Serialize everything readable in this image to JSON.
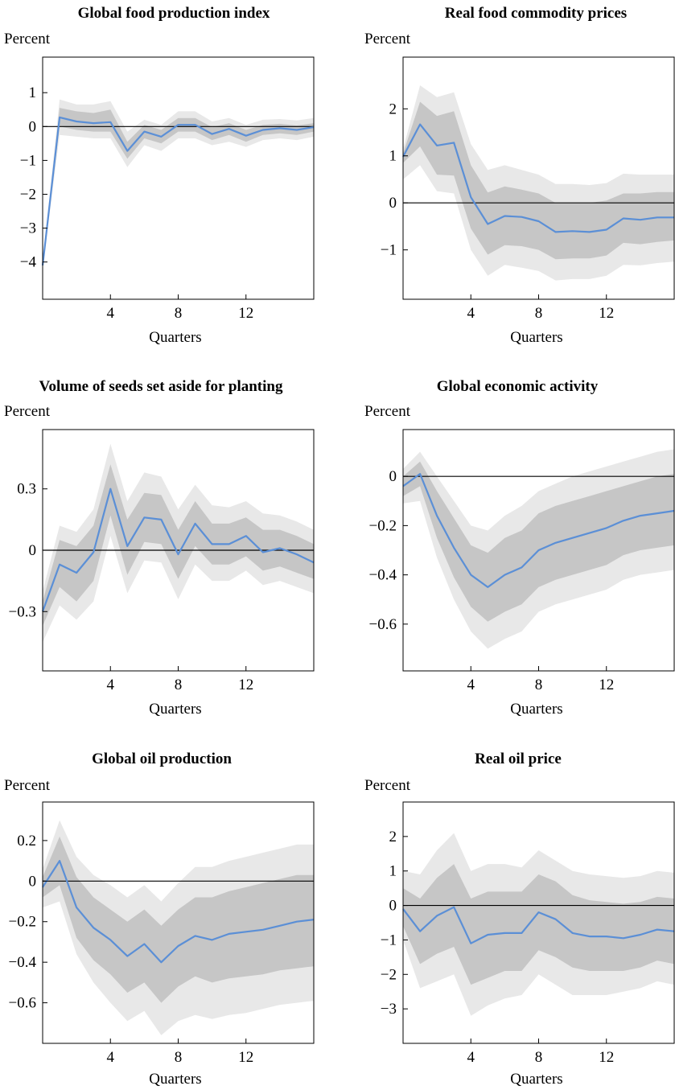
{
  "figure": {
    "panels": [
      {
        "title": "Global food production index",
        "unit_label": "Percent",
        "xlabel": "Quarters"
      },
      {
        "title": "Real food commodity prices",
        "unit_label": "Percent",
        "xlabel": "Quarters"
      },
      {
        "title": "Volume of seeds set aside for planting",
        "unit_label": "Percent",
        "xlabel": "Quarters"
      },
      {
        "title": "Global economic activity",
        "unit_label": "Percent",
        "xlabel": "Quarters"
      },
      {
        "title": "Global oil production",
        "unit_label": "Percent",
        "xlabel": "Quarters"
      },
      {
        "title": "Real oil price",
        "unit_label": "Percent",
        "xlabel": "Quarters"
      }
    ]
  },
  "colors": {
    "line": "#5b8fd6",
    "band_inner": "#c6c6c6",
    "band_outer": "#e8e8e8",
    "zero_line": "#000000"
  },
  "chart_data": [
    {
      "type": "line",
      "title": "Global food production index",
      "ylabel": "Percent",
      "xlabel": "Quarters",
      "x": [
        0,
        1,
        2,
        3,
        4,
        5,
        6,
        7,
        8,
        9,
        10,
        11,
        12,
        13,
        14,
        15,
        16
      ],
      "xlim": [
        0,
        16
      ],
      "ylim": [
        -5.1,
        2.05
      ],
      "xticks": [
        4,
        8,
        12
      ],
      "yticks": [
        1,
        0,
        -1,
        -2,
        -3,
        -4
      ],
      "ytick_labels": [
        "1",
        "0",
        "−1",
        "−2",
        "−3",
        "−4"
      ],
      "series": [
        {
          "values": [
            -4.1,
            0.27,
            0.15,
            0.1,
            0.13,
            -0.72,
            -0.15,
            -0.3,
            0.05,
            0.05,
            -0.22,
            -0.07,
            -0.27,
            -0.1,
            -0.05,
            -0.1,
            -0.02
          ]
        }
      ],
      "band_inner": {
        "upper": [
          -4.05,
          0.55,
          0.45,
          0.4,
          0.5,
          -0.45,
          0.05,
          -0.1,
          0.25,
          0.25,
          -0.02,
          0.1,
          -0.1,
          0.05,
          0.08,
          0.03,
          0.1
        ],
        "lower": [
          -4.15,
          0.0,
          -0.1,
          -0.15,
          -0.15,
          -0.95,
          -0.35,
          -0.5,
          -0.15,
          -0.15,
          -0.4,
          -0.25,
          -0.45,
          -0.25,
          -0.2,
          -0.25,
          -0.15
        ]
      },
      "band_outer": {
        "upper": [
          -4.0,
          0.8,
          0.65,
          0.65,
          0.75,
          -0.15,
          0.2,
          0.05,
          0.45,
          0.45,
          0.15,
          0.25,
          0.05,
          0.2,
          0.22,
          0.18,
          0.25
        ],
        "lower": [
          -4.2,
          -0.25,
          -0.3,
          -0.35,
          -0.35,
          -1.2,
          -0.55,
          -0.72,
          -0.35,
          -0.35,
          -0.55,
          -0.45,
          -0.6,
          -0.4,
          -0.35,
          -0.4,
          -0.3
        ]
      }
    },
    {
      "type": "line",
      "title": "Real food commodity prices",
      "ylabel": "Percent",
      "xlabel": "Quarters",
      "x": [
        0,
        1,
        2,
        3,
        4,
        5,
        6,
        7,
        8,
        9,
        10,
        11,
        12,
        13,
        14,
        15,
        16
      ],
      "xlim": [
        0,
        16
      ],
      "ylim": [
        -2.05,
        3.1
      ],
      "xticks": [
        4,
        8,
        12
      ],
      "yticks": [
        2,
        1,
        0,
        -1
      ],
      "ytick_labels": [
        "2",
        "1",
        "0",
        "−1"
      ],
      "series": [
        {
          "values": [
            0.98,
            1.67,
            1.22,
            1.28,
            0.12,
            -0.45,
            -0.28,
            -0.3,
            -0.39,
            -0.62,
            -0.6,
            -0.62,
            -0.57,
            -0.33,
            -0.36,
            -0.31,
            -0.31
          ]
        }
      ],
      "band_inner": {
        "upper": [
          1.05,
          2.15,
          1.85,
          1.95,
          0.8,
          0.22,
          0.35,
          0.28,
          0.2,
          0.0,
          0.0,
          0.0,
          0.05,
          0.2,
          0.2,
          0.23,
          0.23
        ],
        "lower": [
          0.85,
          1.2,
          0.6,
          0.58,
          -0.55,
          -1.1,
          -0.9,
          -0.92,
          -1.0,
          -1.2,
          -1.18,
          -1.18,
          -1.12,
          -0.85,
          -0.88,
          -0.83,
          -0.8
        ]
      },
      "band_outer": {
        "upper": [
          1.15,
          2.5,
          2.25,
          2.35,
          1.25,
          0.7,
          0.8,
          0.7,
          0.6,
          0.4,
          0.4,
          0.38,
          0.42,
          0.62,
          0.6,
          0.6,
          0.6
        ]
      },
      "band_outer_lower": [
        0.5,
        0.8,
        0.25,
        0.2,
        -1.0,
        -1.55,
        -1.32,
        -1.38,
        -1.45,
        -1.65,
        -1.62,
        -1.62,
        -1.55,
        -1.32,
        -1.33,
        -1.28,
        -1.25
      ]
    },
    {
      "type": "line",
      "title": "Volume of seeds set aside for planting",
      "ylabel": "Percent",
      "xlabel": "Quarters",
      "x": [
        0,
        1,
        2,
        3,
        4,
        5,
        6,
        7,
        8,
        9,
        10,
        11,
        12,
        13,
        14,
        15,
        16
      ],
      "xlim": [
        0,
        16
      ],
      "ylim": [
        -0.59,
        0.59
      ],
      "xticks": [
        4,
        8,
        12
      ],
      "yticks": [
        0.3,
        0,
        -0.3
      ],
      "ytick_labels": [
        "0.3",
        "0",
        "−0.3"
      ],
      "series": [
        {
          "values": [
            -0.3,
            -0.07,
            -0.11,
            -0.01,
            0.3,
            0.02,
            0.16,
            0.15,
            -0.02,
            0.13,
            0.03,
            0.03,
            0.07,
            -0.01,
            0.01,
            -0.02,
            -0.06
          ]
        }
      ],
      "band_inner": {
        "upper": [
          -0.25,
          0.05,
          0.02,
          0.12,
          0.42,
          0.15,
          0.28,
          0.27,
          0.1,
          0.24,
          0.13,
          0.13,
          0.16,
          0.1,
          0.1,
          0.07,
          0.03
        ],
        "lower": [
          -0.37,
          -0.18,
          -0.25,
          -0.15,
          0.17,
          -0.12,
          0.04,
          0.03,
          -0.14,
          0.02,
          -0.07,
          -0.07,
          -0.03,
          -0.1,
          -0.08,
          -0.11,
          -0.14
        ]
      },
      "band_outer": {
        "upper": [
          -0.2,
          0.12,
          0.09,
          0.2,
          0.52,
          0.24,
          0.38,
          0.36,
          0.2,
          0.32,
          0.22,
          0.21,
          0.24,
          0.18,
          0.17,
          0.14,
          0.1
        ],
        "lower": [
          -0.45,
          -0.27,
          -0.34,
          -0.25,
          0.07,
          -0.21,
          -0.05,
          -0.06,
          -0.24,
          -0.07,
          -0.15,
          -0.15,
          -0.1,
          -0.17,
          -0.15,
          -0.18,
          -0.21
        ]
      }
    },
    {
      "type": "line",
      "title": "Global economic activity",
      "ylabel": "Percent",
      "xlabel": "Quarters",
      "x": [
        0,
        1,
        2,
        3,
        4,
        5,
        6,
        7,
        8,
        9,
        10,
        11,
        12,
        13,
        14,
        15,
        16
      ],
      "xlim": [
        0,
        16
      ],
      "ylim": [
        -0.79,
        0.19
      ],
      "xticks": [
        4,
        8,
        12
      ],
      "yticks": [
        0,
        -0.2,
        -0.4,
        -0.6
      ],
      "ytick_labels": [
        "0",
        "−0.2",
        "−0.4",
        "−0.6"
      ],
      "series": [
        {
          "values": [
            -0.04,
            0.01,
            -0.16,
            -0.29,
            -0.4,
            -0.45,
            -0.4,
            -0.37,
            -0.3,
            -0.27,
            -0.25,
            -0.23,
            -0.21,
            -0.18,
            -0.16,
            -0.15,
            -0.14
          ]
        }
      ],
      "band_inner": {
        "upper": [
          0.0,
          0.06,
          -0.06,
          -0.17,
          -0.28,
          -0.31,
          -0.25,
          -0.22,
          -0.15,
          -0.12,
          -0.1,
          -0.08,
          -0.06,
          -0.04,
          -0.02,
          0.0,
          0.01
        ],
        "lower": [
          -0.08,
          -0.04,
          -0.25,
          -0.41,
          -0.53,
          -0.59,
          -0.55,
          -0.52,
          -0.45,
          -0.42,
          -0.4,
          -0.38,
          -0.36,
          -0.32,
          -0.3,
          -0.29,
          -0.28
        ]
      },
      "band_outer": {
        "upper": [
          0.03,
          0.1,
          0.0,
          -0.1,
          -0.2,
          -0.22,
          -0.16,
          -0.12,
          -0.06,
          -0.03,
          0.0,
          0.02,
          0.04,
          0.06,
          0.08,
          0.1,
          0.11
        ],
        "lower": [
          -0.11,
          -0.1,
          -0.33,
          -0.5,
          -0.63,
          -0.7,
          -0.66,
          -0.63,
          -0.55,
          -0.52,
          -0.5,
          -0.48,
          -0.46,
          -0.42,
          -0.4,
          -0.39,
          -0.38
        ]
      }
    },
    {
      "type": "line",
      "title": "Global oil production",
      "ylabel": "Percent",
      "xlabel": "Quarters",
      "x": [
        0,
        1,
        2,
        3,
        4,
        5,
        6,
        7,
        8,
        9,
        10,
        11,
        12,
        13,
        14,
        15,
        16
      ],
      "xlim": [
        0,
        16
      ],
      "ylim": [
        -0.8,
        0.39
      ],
      "xticks": [
        4,
        8,
        12
      ],
      "yticks": [
        0.2,
        0,
        -0.2,
        -0.4,
        -0.6
      ],
      "ytick_labels": [
        "0.2",
        "0",
        "−0.2",
        "−0.4",
        "−0.6"
      ],
      "series": [
        {
          "values": [
            -0.03,
            0.1,
            -0.13,
            -0.23,
            -0.29,
            -0.37,
            -0.31,
            -0.4,
            -0.32,
            -0.27,
            -0.29,
            -0.26,
            -0.25,
            -0.24,
            -0.22,
            -0.2,
            -0.19
          ]
        }
      ],
      "band_inner": {
        "upper": [
          0.02,
          0.22,
          0.02,
          -0.08,
          -0.14,
          -0.2,
          -0.14,
          -0.22,
          -0.14,
          -0.08,
          -0.08,
          -0.05,
          -0.03,
          -0.01,
          0.01,
          0.03,
          0.03
        ]
      },
      "band_inner_lower": [
        -0.08,
        -0.02,
        -0.28,
        -0.39,
        -0.46,
        -0.55,
        -0.5,
        -0.6,
        -0.52,
        -0.47,
        -0.5,
        -0.48,
        -0.47,
        -0.46,
        -0.44,
        -0.43,
        -0.42
      ],
      "band_outer": {
        "upper": [
          0.06,
          0.3,
          0.12,
          0.03,
          -0.02,
          -0.08,
          -0.02,
          -0.1,
          -0.01,
          0.07,
          0.07,
          0.1,
          0.12,
          0.14,
          0.16,
          0.18,
          0.18
        ],
        "lower": [
          -0.13,
          -0.1,
          -0.36,
          -0.5,
          -0.6,
          -0.69,
          -0.64,
          -0.76,
          -0.69,
          -0.66,
          -0.68,
          -0.66,
          -0.65,
          -0.63,
          -0.61,
          -0.6,
          -0.59
        ]
      }
    },
    {
      "type": "line",
      "title": "Real oil price",
      "ylabel": "Percent",
      "xlabel": "Quarters",
      "x": [
        0,
        1,
        2,
        3,
        4,
        5,
        6,
        7,
        8,
        9,
        10,
        11,
        12,
        13,
        14,
        15,
        16
      ],
      "xlim": [
        0,
        16
      ],
      "ylim": [
        -4.0,
        3.0
      ],
      "xticks": [
        4,
        8,
        12
      ],
      "yticks": [
        2,
        1,
        0,
        -1,
        -2,
        -3
      ],
      "ytick_labels": [
        "2",
        "1",
        "0",
        "−1",
        "−2",
        "−3"
      ],
      "series": [
        {
          "values": [
            -0.1,
            -0.75,
            -0.3,
            -0.05,
            -1.1,
            -0.85,
            -0.8,
            -0.8,
            -0.2,
            -0.4,
            -0.8,
            -0.9,
            -0.9,
            -0.95,
            -0.85,
            -0.7,
            -0.75
          ]
        }
      ],
      "band_inner": {
        "upper": [
          0.5,
          0.2,
          0.8,
          1.2,
          0.2,
          0.4,
          0.4,
          0.4,
          0.9,
          0.7,
          0.3,
          0.15,
          0.1,
          0.05,
          0.1,
          0.25,
          0.2
        ],
        "lower": [
          -0.6,
          -1.7,
          -1.4,
          -1.2,
          -2.3,
          -2.1,
          -1.9,
          -1.9,
          -1.3,
          -1.5,
          -1.8,
          -1.9,
          -1.9,
          -1.9,
          -1.8,
          -1.6,
          -1.7
        ]
      },
      "band_outer": {
        "upper": [
          1.0,
          0.9,
          1.6,
          2.1,
          1.0,
          1.2,
          1.2,
          1.1,
          1.6,
          1.3,
          1.0,
          0.9,
          0.85,
          0.8,
          0.85,
          1.0,
          0.95
        ],
        "lower": [
          -1.0,
          -2.4,
          -2.2,
          -2.0,
          -3.2,
          -2.9,
          -2.7,
          -2.6,
          -2.0,
          -2.3,
          -2.6,
          -2.6,
          -2.6,
          -2.5,
          -2.4,
          -2.2,
          -2.3
        ]
      }
    }
  ]
}
